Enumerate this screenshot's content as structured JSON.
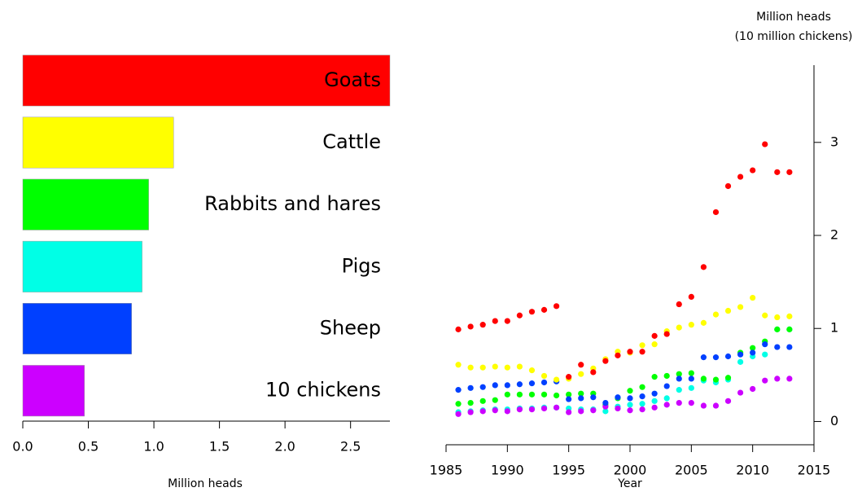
{
  "chart_data": [
    {
      "type": "bar",
      "orientation": "horizontal",
      "categories": [
        "Goats",
        "Cattle",
        "Rabbits and hares",
        "Pigs",
        "Sheep",
        "10 chickens"
      ],
      "values": [
        2.8,
        1.15,
        0.96,
        0.91,
        0.83,
        0.47
      ],
      "colors": [
        "#ff0000",
        "#ffff00",
        "#00ff00",
        "#00ffe6",
        "#0040ff",
        "#cc00ff"
      ],
      "xlim": [
        0,
        2.8
      ],
      "xticks": [
        {
          "value": 0,
          "label": "0.0"
        },
        0.5,
        {
          "value": 1,
          "label": "1.0"
        },
        1.5,
        {
          "value": 2,
          "label": "2.0"
        },
        2.5
      ],
      "xlabel": "Million heads"
    },
    {
      "type": "scatter",
      "y_axis_side": "right",
      "x": [
        1986,
        1987,
        1988,
        1989,
        1990,
        1991,
        1992,
        1993,
        1994,
        1995,
        1996,
        1997,
        1998,
        1999,
        2000,
        2001,
        2002,
        2003,
        2004,
        2005,
        2006,
        2007,
        2008,
        2009,
        2010,
        2011,
        2012,
        2013
      ],
      "series": [
        {
          "color": "#00ffe6",
          "values": [
            0.1,
            0.11,
            0.12,
            0.13,
            0.13,
            0.14,
            0.14,
            0.15,
            0.15,
            0.14,
            0.13,
            0.13,
            0.11,
            0.16,
            0.18,
            0.19,
            0.22,
            0.25,
            0.34,
            0.36,
            0.44,
            0.42,
            0.45,
            0.64,
            0.7,
            0.72,
            0.99,
            0.99
          ]
        },
        {
          "color": "#00ff00",
          "values": [
            0.19,
            0.2,
            0.22,
            0.23,
            0.29,
            0.29,
            0.29,
            0.29,
            0.28,
            0.29,
            0.3,
            0.3,
            0.18,
            0.25,
            0.33,
            0.37,
            0.48,
            0.49,
            0.51,
            0.52,
            0.46,
            0.45,
            0.47,
            0.74,
            0.79,
            0.86,
            0.99,
            0.99
          ]
        },
        {
          "color": "#cc00ff",
          "values": [
            0.08,
            0.1,
            0.11,
            0.12,
            0.11,
            0.13,
            0.13,
            0.14,
            0.15,
            0.1,
            0.11,
            0.12,
            0.16,
            0.14,
            0.12,
            0.13,
            0.15,
            0.18,
            0.2,
            0.2,
            0.17,
            0.17,
            0.22,
            0.31,
            0.35,
            0.44,
            0.46,
            0.46
          ]
        },
        {
          "color": "#0040ff",
          "values": [
            0.34,
            0.36,
            0.37,
            0.39,
            0.39,
            0.4,
            0.41,
            0.42,
            0.43,
            0.24,
            0.25,
            0.26,
            0.2,
            0.26,
            0.25,
            0.27,
            0.3,
            0.38,
            0.46,
            0.46,
            0.69,
            0.69,
            0.7,
            0.72,
            0.74,
            0.83,
            0.8,
            0.8
          ]
        },
        {
          "color": "#ffff00",
          "values": [
            0.61,
            0.58,
            0.58,
            0.59,
            0.58,
            0.59,
            0.55,
            0.49,
            0.45,
            0.46,
            0.51,
            0.57,
            0.67,
            0.75,
            0.74,
            0.82,
            0.83,
            0.97,
            1.01,
            1.04,
            1.06,
            1.15,
            1.19,
            1.23,
            1.33,
            1.14,
            1.12,
            1.13
          ]
        },
        {
          "color": "#ff0000",
          "values": [
            0.99,
            1.02,
            1.04,
            1.08,
            1.08,
            1.14,
            1.18,
            1.2,
            1.24,
            0.48,
            0.61,
            0.53,
            0.65,
            0.71,
            0.75,
            0.75,
            0.92,
            0.94,
            1.26,
            1.34,
            1.66,
            2.25,
            2.53,
            2.63,
            2.7,
            2.98,
            2.68,
            2.68
          ]
        }
      ],
      "xlim": [
        1985,
        2015
      ],
      "xticks": [
        1985,
        1990,
        1995,
        2000,
        2005,
        2010,
        2015
      ],
      "ylim": [
        -0.25,
        3.83
      ],
      "yticks": [
        0,
        1,
        2,
        3
      ],
      "xlabel": "Year",
      "ylabel": [
        "Million heads",
        "(10 million chickens)"
      ]
    }
  ]
}
